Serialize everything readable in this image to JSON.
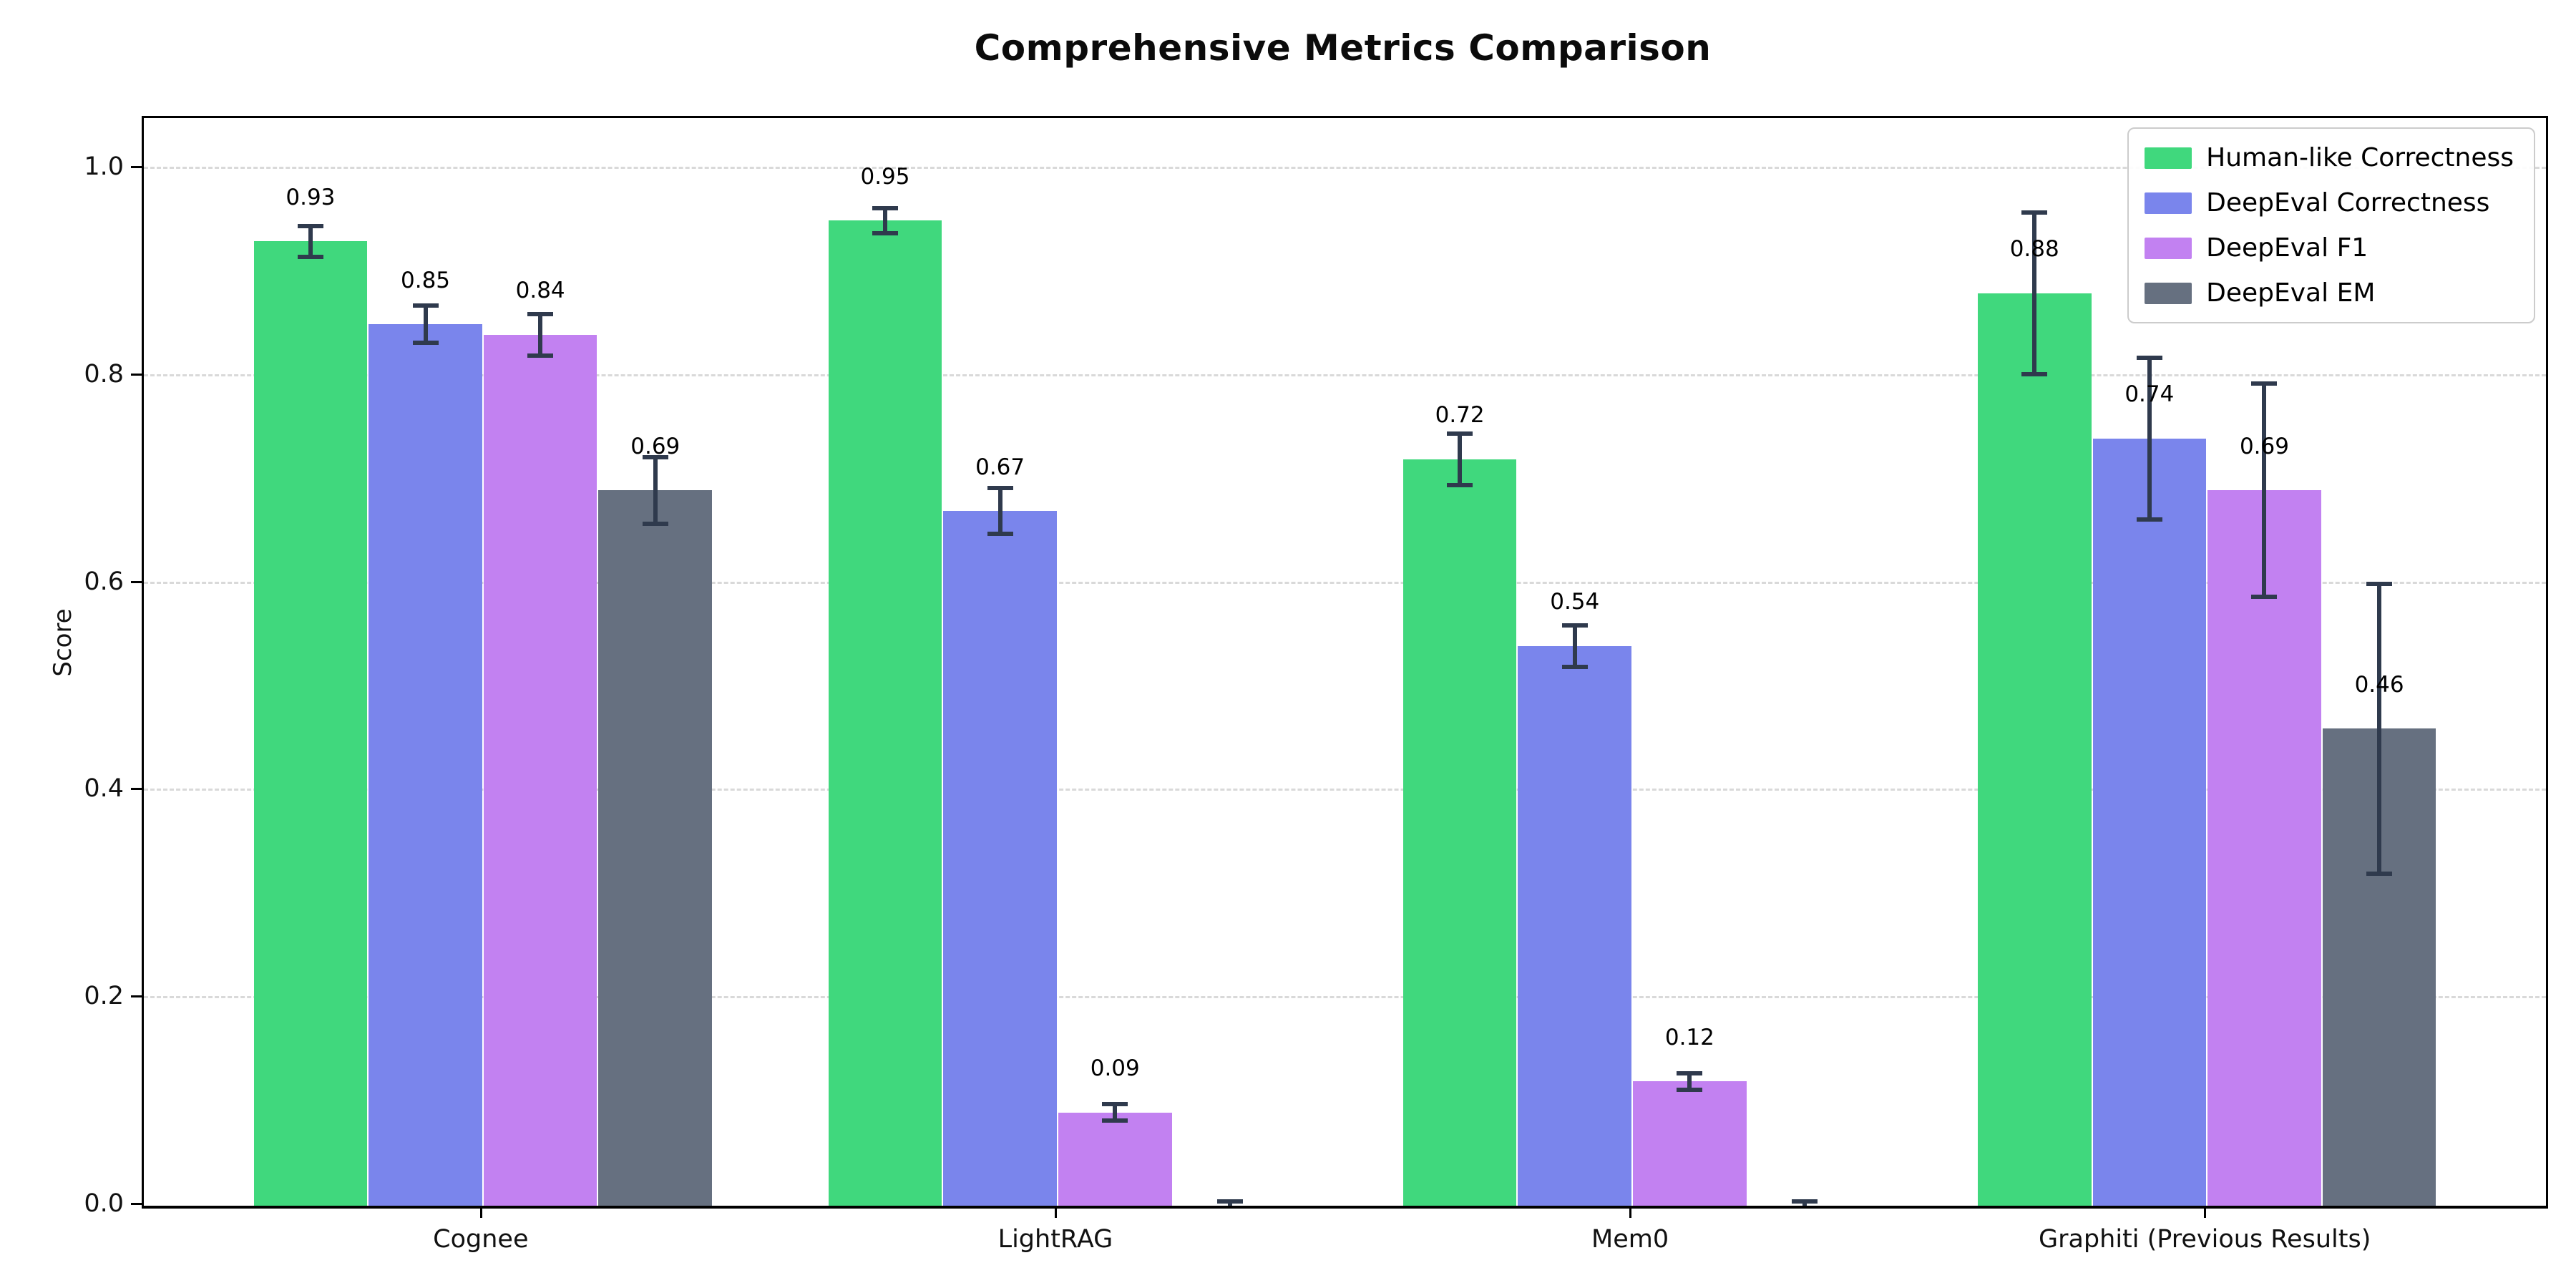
{
  "chart_data": {
    "type": "bar",
    "title": "Comprehensive Metrics Comparison",
    "ylabel": "Score",
    "xlabel": "",
    "categories": [
      "Cognee",
      "LightRAG",
      "Mem0",
      "Graphiti (Previous Results)"
    ],
    "series": [
      {
        "name": "Human-like Correctness",
        "color": "#40d87d",
        "values": [
          0.93,
          0.95,
          0.72,
          0.88
        ],
        "errors": [
          0.015,
          0.012,
          0.025,
          0.078
        ],
        "value_labels": [
          "0.93",
          "0.95",
          "0.72",
          "0.88"
        ]
      },
      {
        "name": "DeepEval Correctness",
        "color": "#7a85ec",
        "values": [
          0.85,
          0.67,
          0.54,
          0.74
        ],
        "errors": [
          0.018,
          0.022,
          0.02,
          0.078
        ],
        "value_labels": [
          "0.85",
          "0.67",
          "0.54",
          "0.74"
        ]
      },
      {
        "name": "DeepEval F1",
        "color": "#c281f1",
        "values": [
          0.84,
          0.09,
          0.12,
          0.69
        ],
        "errors": [
          0.02,
          0.008,
          0.008,
          0.103
        ],
        "value_labels": [
          "0.84",
          "0.09",
          "0.12",
          "0.69"
        ]
      },
      {
        "name": "DeepEval EM",
        "color": "#667080",
        "values": [
          0.69,
          0.0,
          0.0,
          0.46
        ],
        "errors": [
          0.032,
          0.004,
          0.004,
          0.14
        ],
        "value_labels": [
          "0.69",
          "",
          "",
          "0.46"
        ]
      }
    ],
    "yticks": [
      {
        "value": 0.0,
        "label": "0.0"
      },
      {
        "value": 0.2,
        "label": "0.2"
      },
      {
        "value": 0.4,
        "label": "0.4"
      },
      {
        "value": 0.6,
        "label": "0.6"
      },
      {
        "value": 0.8,
        "label": "0.8"
      },
      {
        "value": 1.0,
        "label": "1.0"
      }
    ],
    "ylim": [
      0,
      1.049
    ],
    "grid": "horizontal-dashed",
    "legend_position": "upper right",
    "errorbar_color": "#2f3a4d"
  }
}
